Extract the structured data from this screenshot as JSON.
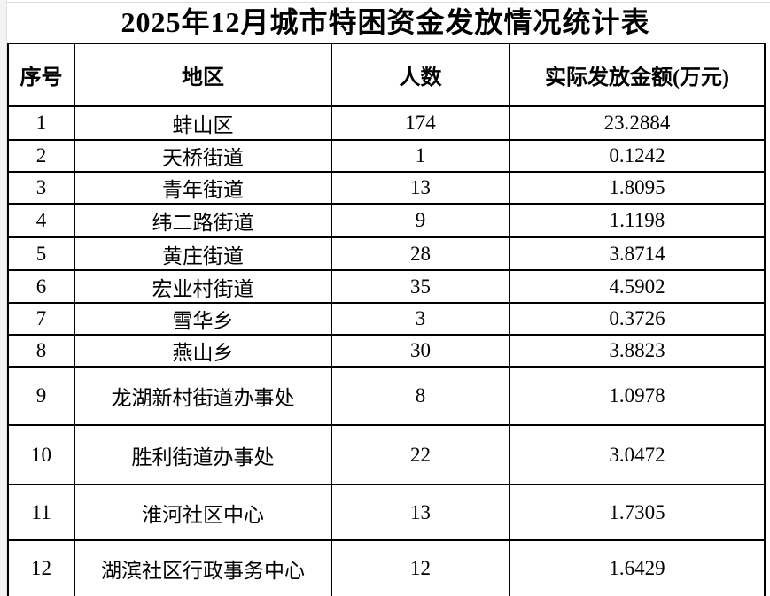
{
  "title": "2025年12月城市特困资金发放情况统计表",
  "colors": {
    "text": "#000000",
    "table_border": "#000000",
    "page_background": "#ffffff",
    "margin_strip": "#f3f3f3",
    "gridline": "#dcdcdc"
  },
  "table": {
    "headers": [
      "序号",
      "地区",
      "人数",
      "实际发放金额(万元)"
    ],
    "rows": [
      {
        "no": "1",
        "region": "蚌山区",
        "count": "174",
        "amount": "23.2884"
      },
      {
        "no": "2",
        "region": "天桥街道",
        "count": "1",
        "amount": "0.1242"
      },
      {
        "no": "3",
        "region": "青年街道",
        "count": "13",
        "amount": "1.8095"
      },
      {
        "no": "4",
        "region": "纬二路街道",
        "count": "9",
        "amount": "1.1198"
      },
      {
        "no": "5",
        "region": "黄庄街道",
        "count": "28",
        "amount": "3.8714"
      },
      {
        "no": "6",
        "region": "宏业村街道",
        "count": "35",
        "amount": "4.5902"
      },
      {
        "no": "7",
        "region": "雪华乡",
        "count": "3",
        "amount": "0.3726"
      },
      {
        "no": "8",
        "region": "燕山乡",
        "count": "30",
        "amount": "3.8823"
      },
      {
        "no": "9",
        "region": "龙湖新村街道办事处",
        "count": "8",
        "amount": "1.0978"
      },
      {
        "no": "10",
        "region": "胜利街道办事处",
        "count": "22",
        "amount": "3.0472"
      },
      {
        "no": "11",
        "region": "淮河社区中心",
        "count": "13",
        "amount": "1.7305"
      },
      {
        "no": "12",
        "region": "湖滨社区行政事务中心",
        "count": "12",
        "amount": "1.6429"
      }
    ]
  }
}
